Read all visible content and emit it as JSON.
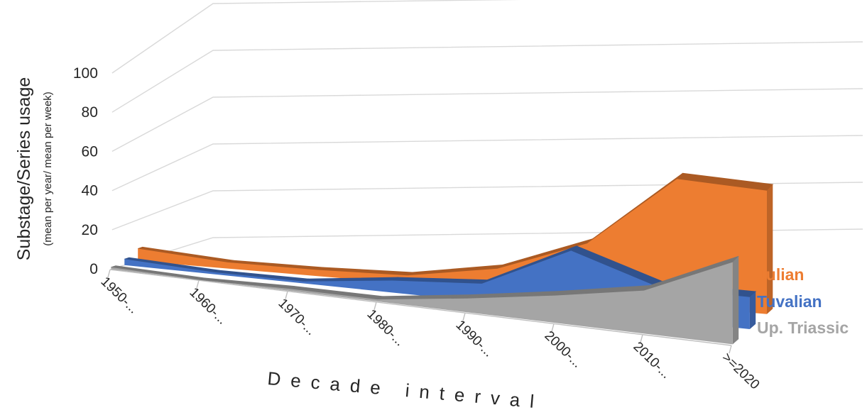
{
  "chart_data": {
    "type": "area",
    "subtype": "3d-area",
    "title": "",
    "ylabel": "Substage/Series usage",
    "ylabel_sub": "(mean per year/ mean per week)",
    "xlabel": "Decade interval",
    "ylim": [
      0,
      100
    ],
    "yticks": [
      "0",
      "20",
      "40",
      "60",
      "80",
      "100"
    ],
    "categories": [
      "1950-...",
      "1960-...",
      "1970-...",
      "1980-...",
      "1990-...",
      "2000-...",
      "2010-...",
      ">=2020"
    ],
    "series": [
      {
        "name": "Julian",
        "color": "#ed7d31",
        "values": [
          6,
          3,
          3,
          4,
          11,
          27,
          62,
          60
        ]
      },
      {
        "name": "Tuvalian",
        "color": "#4472c4",
        "values": [
          3,
          1,
          1,
          6,
          9,
          30,
          16,
          16
        ]
      },
      {
        "name": "Up. Triassic",
        "color": "#a5a5a5",
        "values": [
          1,
          0,
          1,
          1,
          7,
          14,
          22,
          42
        ]
      }
    ],
    "grid": true,
    "legend": "right"
  }
}
